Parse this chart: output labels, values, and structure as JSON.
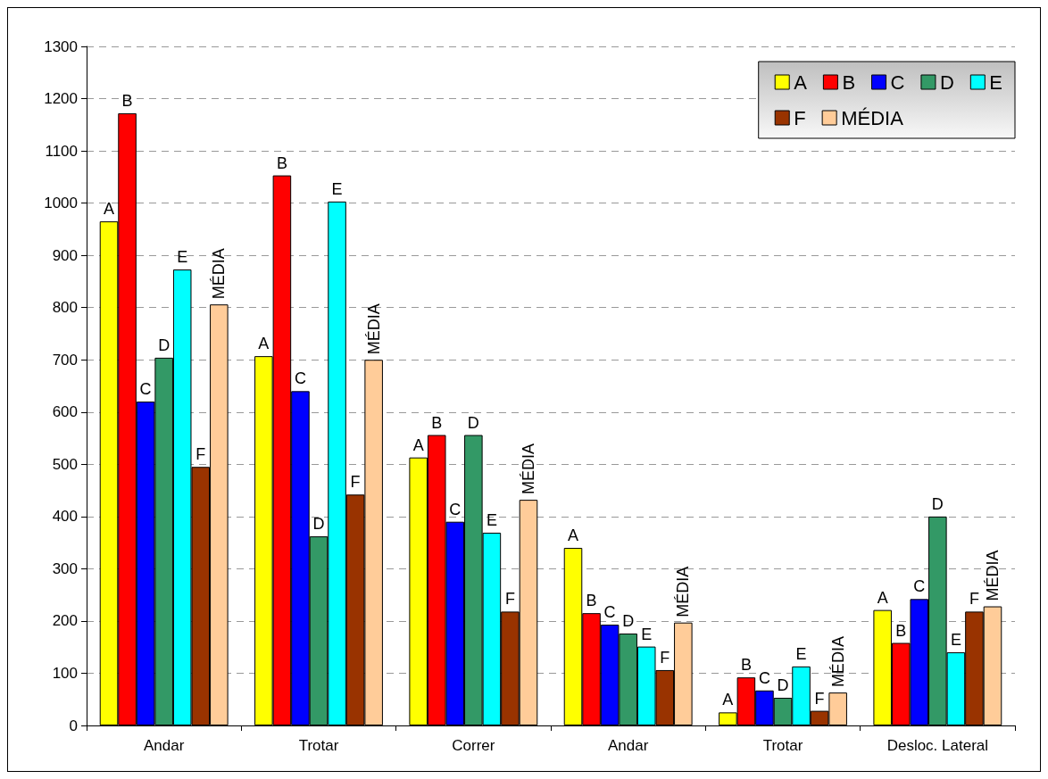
{
  "chart_data": {
    "type": "bar",
    "categories": [
      "Andar",
      "Trotar",
      "Correr",
      "Andar",
      "Trotar",
      "Desloc. Lateral"
    ],
    "series": [
      {
        "name": "A",
        "color": "#ffff00",
        "values": [
          965,
          707,
          513,
          340,
          25,
          221
        ],
        "value_labels": [
          "A",
          "A",
          "A",
          "A",
          "A",
          "A"
        ]
      },
      {
        "name": "B",
        "color": "#ff0000",
        "values": [
          1172,
          1053,
          556,
          215,
          92,
          158
        ],
        "value_labels": [
          "B",
          "B",
          "B",
          "B",
          "B",
          "B"
        ]
      },
      {
        "name": "C",
        "color": "#0000ff",
        "values": [
          620,
          640,
          390,
          193,
          67,
          242
        ],
        "value_labels": [
          "C",
          "C",
          "C",
          "C",
          "C",
          "C"
        ]
      },
      {
        "name": "D",
        "color": "#339966",
        "values": [
          704,
          362,
          556,
          176,
          53,
          400
        ],
        "value_labels": [
          "D",
          "D",
          "D",
          "D",
          "D",
          "D"
        ]
      },
      {
        "name": "E",
        "color": "#00ffff",
        "values": [
          873,
          1003,
          369,
          151,
          113,
          140
        ],
        "value_labels": [
          "E",
          "E",
          "E",
          "E",
          "E",
          "E"
        ]
      },
      {
        "name": "F",
        "color": "#993300",
        "values": [
          495,
          442,
          218,
          106,
          28,
          218
        ],
        "value_labels": [
          "F",
          "F",
          "F",
          "F",
          "F",
          "F"
        ]
      },
      {
        "name": "MÉDIA",
        "color": "#ffcc99",
        "values": [
          806,
          700,
          432,
          197,
          63,
          228
        ],
        "value_labels": [
          "MÉDIA",
          "MÉDIA",
          "MÉDIA",
          "MÉDIA",
          "MÉDIA",
          "MÉDIA"
        ]
      }
    ],
    "ylim": [
      0,
      1300
    ],
    "yticks": [
      0,
      100,
      200,
      300,
      400,
      500,
      600,
      700,
      800,
      900,
      1000,
      1100,
      1200,
      1300
    ],
    "grid": "y",
    "legend": "top right"
  }
}
